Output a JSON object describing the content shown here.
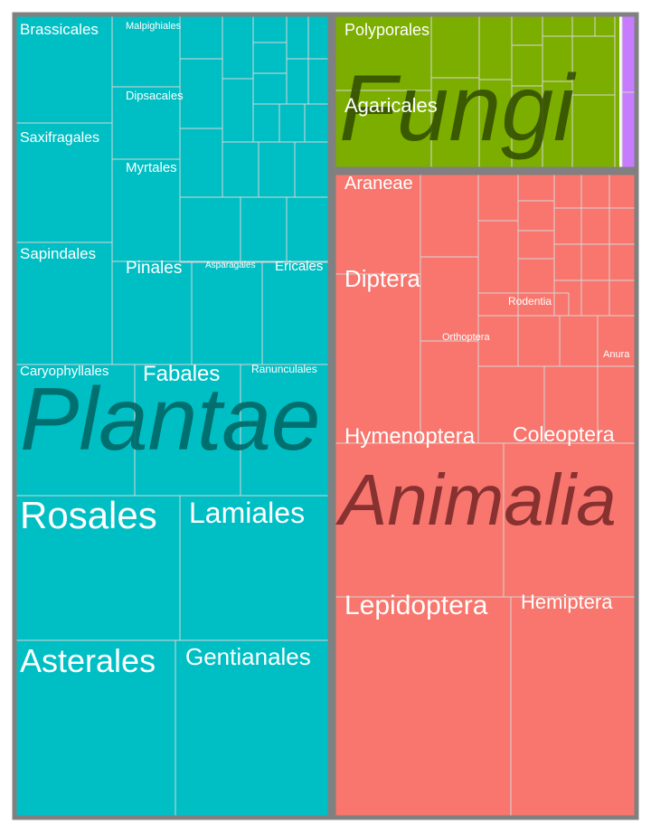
{
  "chart_data": {
    "type": "treemap",
    "colors": {
      "Plantae": "#00BFC4",
      "Fungi": "#7CAE00",
      "Animalia": "#F8766D",
      "Other": "#C77CFF",
      "border": "#808080",
      "cell_border": "#d6d6d6",
      "label": "#ffffff"
    },
    "groups": [
      {
        "name": "Plantae",
        "labeled_children": [
          "Brassicales",
          "Malpighiales",
          "Dipsacales",
          "Saxifragales",
          "Myrtales",
          "Sapindales",
          "Pinales",
          "Asparagales",
          "Ericales",
          "Caryophyllales",
          "Fabales",
          "Ranunculales",
          "Rosales",
          "Lamiales",
          "Asterales",
          "Gentianales"
        ]
      },
      {
        "name": "Fungi",
        "labeled_children": [
          "Polyporales",
          "Agaricales"
        ]
      },
      {
        "name": "Animalia",
        "labeled_children": [
          "Araneae",
          "Diptera",
          "Rodentia",
          "Orthoptera",
          "Anura",
          "Hymenoptera",
          "Coleoptera",
          "Animalia",
          "Lepidoptera",
          "Hemiptera"
        ]
      }
    ]
  }
}
